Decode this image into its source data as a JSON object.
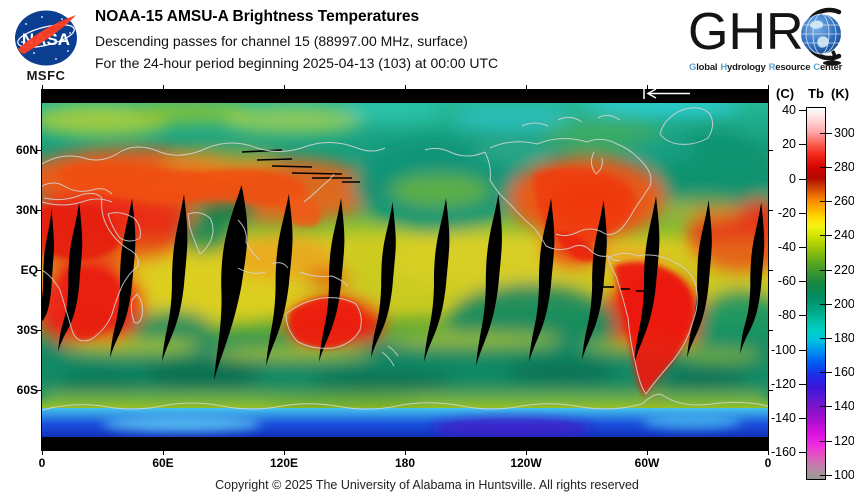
{
  "header": {
    "nasa": {
      "wordmark": "NASA",
      "center": "MSFC"
    },
    "title": "NOAA-15 AMSU-A Brightness Temperatures",
    "subtitle_channel": "Descending passes for channel 15 (88997.00 MHz, surface)",
    "subtitle_period": "For the 24-hour period beginning 2025-04-13 (103) at 00:00 UTC",
    "ghrc": {
      "letters": "GHR",
      "c_letter": "C",
      "tagline": [
        {
          "initial": "G",
          "rest": "lobal"
        },
        {
          "initial": "H",
          "rest": "ydrology"
        },
        {
          "initial": "R",
          "rest": "esource"
        },
        {
          "initial": "C",
          "rest": "enter"
        }
      ]
    }
  },
  "map": {
    "lat_labels": [
      "60N",
      "30N",
      "EQ",
      "30S",
      "60S"
    ],
    "lon_labels": [
      "0",
      "60E",
      "120E",
      "180",
      "120W",
      "60W",
      "0"
    ]
  },
  "colorbar": {
    "unit_left": "(C)",
    "unit_mid": "Tb",
    "unit_right": "(K)",
    "celsius_ticks": [
      40,
      20,
      0,
      -20,
      -40,
      -60,
      -80,
      -100,
      -120,
      -140,
      -160
    ],
    "kelvin_ticks": [
      300,
      280,
      260,
      240,
      220,
      200,
      180,
      160,
      140,
      120,
      100
    ],
    "scale_stops": [
      {
        "k": 315,
        "color": "#ffffff"
      },
      {
        "k": 309,
        "color": "#ffdede"
      },
      {
        "k": 301,
        "color": "#ffa8a8"
      },
      {
        "k": 294,
        "color": "#fb6054"
      },
      {
        "k": 287,
        "color": "#f02618"
      },
      {
        "k": 280,
        "color": "#d20400"
      },
      {
        "k": 274,
        "color": "#b20600"
      },
      {
        "k": 269,
        "color": "#cc3a00"
      },
      {
        "k": 263,
        "color": "#f27600"
      },
      {
        "k": 257,
        "color": "#ffa600"
      },
      {
        "k": 251,
        "color": "#ffd800"
      },
      {
        "k": 246,
        "color": "#f8f414"
      },
      {
        "k": 240,
        "color": "#cfe400"
      },
      {
        "k": 232,
        "color": "#97c406"
      },
      {
        "k": 224,
        "color": "#5aa81e"
      },
      {
        "k": 217,
        "color": "#2f9332"
      },
      {
        "k": 211,
        "color": "#158544"
      },
      {
        "k": 204,
        "color": "#038c60"
      },
      {
        "k": 197,
        "color": "#00a37e"
      },
      {
        "k": 190,
        "color": "#00bda4"
      },
      {
        "k": 184,
        "color": "#00d0c8"
      },
      {
        "k": 178,
        "color": "#00c0e2"
      },
      {
        "k": 172,
        "color": "#0090f0"
      },
      {
        "k": 165,
        "color": "#005af0"
      },
      {
        "k": 158,
        "color": "#1f2ce8"
      },
      {
        "k": 151,
        "color": "#3a14da"
      },
      {
        "k": 144,
        "color": "#6018d2"
      },
      {
        "k": 137,
        "color": "#8c12cc"
      },
      {
        "k": 130,
        "color": "#b50ed4"
      },
      {
        "k": 123,
        "color": "#de14e0"
      },
      {
        "k": 117,
        "color": "#ee2ce0"
      },
      {
        "k": 111,
        "color": "#e452c0"
      },
      {
        "k": 105,
        "color": "#c47cac"
      },
      {
        "k": 100,
        "color": "#a8939f"
      },
      {
        "k": 97,
        "color": "#979797"
      }
    ]
  },
  "footer": {
    "copyright": "Copyright © 2025 The University of Alabama in Huntsville.  All rights reserved"
  },
  "colors": {
    "nasa_blue": "#0b3d91",
    "nasa_red": "#fc3d21",
    "ghrc_initial_blue": "#5aa7d4",
    "data_gap_black": "#000000"
  }
}
